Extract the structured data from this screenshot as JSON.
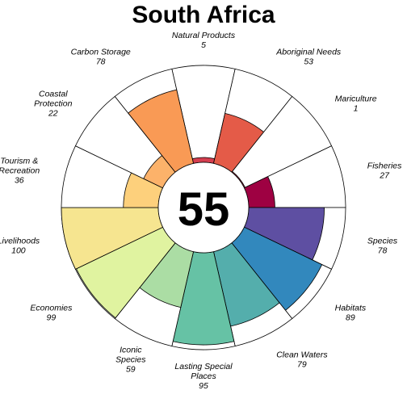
{
  "chart_data": {
    "type": "flower",
    "title": "South Africa",
    "center_score": "55",
    "max_value": 100,
    "petals": [
      {
        "name": "Natural Products",
        "label_lines": [
          "Natural Products"
        ],
        "value_label": "5",
        "value": 5,
        "color": "#d53e4f",
        "anchor": "middle"
      },
      {
        "name": "Aboriginal Needs",
        "label_lines": [
          "Aboriginal Needs"
        ],
        "value_label": "53",
        "value": 53,
        "color": "#e45b48",
        "anchor": "start"
      },
      {
        "name": "Mariculture",
        "label_lines": [
          "Mariculture"
        ],
        "value_label": "1",
        "value": 1,
        "color": "#c9274c",
        "anchor": "start"
      },
      {
        "name": "Fisheries",
        "label_lines": [
          "Fisheries"
        ],
        "value_label": "27",
        "value": 27,
        "color": "#9e0142",
        "anchor": "start"
      },
      {
        "name": "Species",
        "label_lines": [
          "Species"
        ],
        "value_label": "78",
        "value": 78,
        "color": "#5e4fa2",
        "anchor": "start"
      },
      {
        "name": "Habitats",
        "label_lines": [
          "Habitats"
        ],
        "value_label": "89",
        "value": 89,
        "color": "#3288bd",
        "anchor": "start"
      },
      {
        "name": "Clean Waters",
        "label_lines": [
          "Clean Waters"
        ],
        "value_label": "79",
        "value": 79,
        "color": "#54aeac",
        "anchor": "start"
      },
      {
        "name": "Lasting Special Places",
        "label_lines": [
          "Lasting Special",
          "Places"
        ],
        "value_label": "95",
        "value": 95,
        "color": "#66c2a5",
        "anchor": "middle"
      },
      {
        "name": "Iconic Species",
        "label_lines": [
          "Iconic",
          "Species"
        ],
        "value_label": "59",
        "value": 59,
        "color": "#abdda4",
        "anchor": "middle"
      },
      {
        "name": "Economies",
        "label_lines": [
          "Economies"
        ],
        "value_label": "99",
        "value": 99,
        "color": "#e0f3a0",
        "anchor": "end"
      },
      {
        "name": "Livelihoods",
        "label_lines": [
          "Livelihoods"
        ],
        "value_label": "100",
        "value": 100,
        "color": "#f6e590",
        "anchor": "end"
      },
      {
        "name": "Tourism & Recreation",
        "label_lines": [
          "Tourism &",
          "Recreation"
        ],
        "value_label": "36",
        "value": 36,
        "color": "#fdd07c",
        "anchor": "end"
      },
      {
        "name": "Coastal Protection",
        "label_lines": [
          "Coastal",
          "Protection"
        ],
        "value_label": "22",
        "value": 22,
        "color": "#fcb26a",
        "anchor": "end"
      },
      {
        "name": "Carbon Storage",
        "label_lines": [
          "Carbon Storage"
        ],
        "value_label": "78",
        "value": 78,
        "color": "#f99a55",
        "anchor": "end"
      }
    ]
  }
}
